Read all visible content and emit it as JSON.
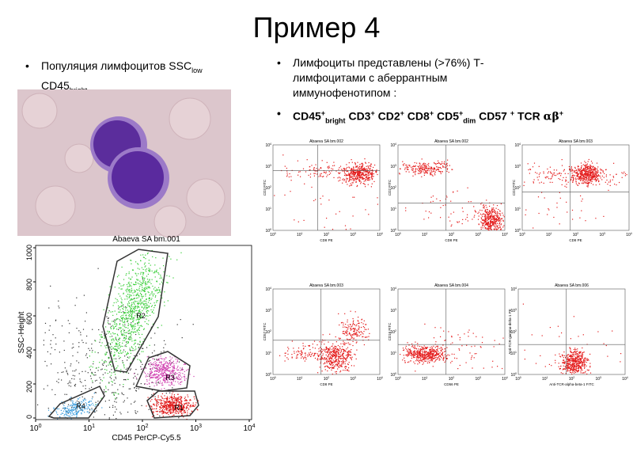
{
  "title": "Пример 4",
  "left_bullet": [
    "Популяция лимфоцитов SSC",
    "low",
    "CD45",
    "bright"
  ],
  "right_bullets": [
    [
      "Лимфоциты представлены (>76%) Т-лимфоцитами с аберрантным иммунофенотипом :"
    ],
    [
      "CD45",
      "+",
      "bright",
      "CD3",
      "+",
      "CD2",
      "+",
      "CD8",
      "+",
      "CD5",
      "+",
      "dim",
      "CD57",
      "+",
      "TCR",
      "αβ",
      "+"
    ]
  ],
  "main_plot": {
    "title": "Abaeva SA bm.001",
    "x_label": "CD45 PerCP-Cy5.5",
    "y_label": "SSC-Height",
    "ylim": [
      0,
      1000
    ],
    "yticks": [
      0,
      200,
      400,
      600,
      800,
      1000
    ],
    "xticks": [
      {
        "base": "10",
        "exp": "0"
      },
      {
        "base": "10",
        "exp": "1"
      },
      {
        "base": "10",
        "exp": "2"
      },
      {
        "base": "10",
        "exp": "3"
      },
      {
        "base": "10",
        "exp": "4"
      }
    ],
    "gates": [
      "R2",
      "R3",
      "R4",
      "R1"
    ]
  },
  "small_plots": [
    {
      "title": "Abaeva SA bm.002",
      "x_label": "CD8 PE",
      "y_label": "CD3 FITC"
    },
    {
      "title": "Abaeva SA bm.002",
      "x_label": "CD8 PE",
      "y_label": "CD2 FITC"
    },
    {
      "title": "Abaeva SA bm.003",
      "x_label": "CD8 PE",
      "y_label": "CD3 FITC"
    },
    {
      "title": "Abaeva SA bm.003",
      "x_label": "CD8 PE",
      "y_label": "CD57 FITC"
    },
    {
      "title": "Abaeva SA bm.004",
      "x_label": "CD56 PE",
      "y_label": "CD16 FITC"
    },
    {
      "title": "Abaeva SA bm.006",
      "x_label": "Anti-TCR-alpha-beta-1 FITC",
      "y_label": "Anti-TCR-gamma-delta-1 PE"
    }
  ]
}
